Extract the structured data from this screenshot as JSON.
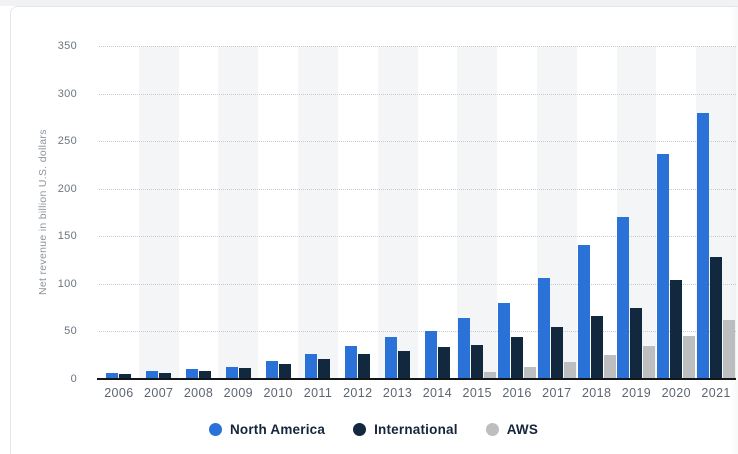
{
  "chart_data": {
    "type": "bar",
    "title": "",
    "xlabel": "",
    "ylabel": "Net revenue in billion U.S. dollars",
    "ylim": [
      0,
      350
    ],
    "ytick_step": 50,
    "grid": "horizontal-dotted",
    "legend_position": "bottom-center",
    "plot_band_color": "#f4f5f7",
    "categories": [
      2006,
      2007,
      2008,
      2009,
      2010,
      2011,
      2012,
      2013,
      2014,
      2015,
      2016,
      2017,
      2018,
      2019,
      2020,
      2021
    ],
    "series": [
      {
        "name": "North America",
        "color": "#2a72d8",
        "values": [
          5.87,
          8.1,
          10.23,
          12.83,
          18.71,
          26.71,
          34.81,
          44.52,
          50.83,
          63.71,
          79.79,
          106.11,
          141.37,
          170.77,
          236.28,
          279.83
        ]
      },
      {
        "name": "International",
        "color": "#12283e",
        "values": [
          4.84,
          6.74,
          8.94,
          11.68,
          15.5,
          21.37,
          26.28,
          29.93,
          33.52,
          35.42,
          43.98,
          54.3,
          65.87,
          74.72,
          104.41,
          127.79
        ]
      },
      {
        "name": "AWS",
        "color": "#bdbec0",
        "values": [
          null,
          null,
          null,
          null,
          null,
          null,
          null,
          null,
          null,
          7.88,
          12.22,
          17.46,
          25.66,
          35.03,
          45.37,
          62.2
        ]
      }
    ]
  }
}
